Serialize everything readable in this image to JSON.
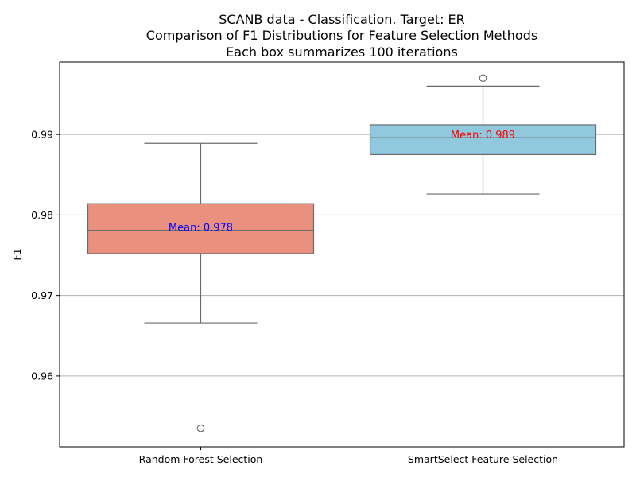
{
  "chart_data": {
    "type": "box",
    "title_lines": [
      "SCANB data - Classification. Target: ER",
      "Comparison of F1 Distributions for Feature Selection Methods",
      "Each box summarizes 100 iterations"
    ],
    "xlabel": "",
    "ylabel": "F1",
    "ylim": [
      0.9512,
      0.999
    ],
    "yticks": [
      0.96,
      0.97,
      0.98,
      0.99
    ],
    "ytick_labels": [
      "0.96",
      "0.97",
      "0.98",
      "0.99"
    ],
    "grid_y": true,
    "categories": [
      "Random Forest Selection",
      "SmartSelect Feature Selection"
    ],
    "boxes": [
      {
        "label": "Random Forest Selection",
        "whisker_low": 0.9666,
        "q1": 0.9752,
        "median": 0.9781,
        "q3": 0.9814,
        "whisker_high": 0.9889,
        "outliers": [
          0.9535
        ],
        "mean_label": "Mean: 0.978",
        "color": "#e9907f",
        "mean_label_color": "#0000ff"
      },
      {
        "label": "SmartSelect Feature Selection",
        "whisker_low": 0.9826,
        "q1": 0.9875,
        "median": 0.9896,
        "q3": 0.9912,
        "whisker_high": 0.996,
        "outliers": [
          0.997
        ],
        "mean_label": "Mean: 0.989",
        "color": "#90c8de",
        "mean_label_color": "#ff0000"
      }
    ],
    "line_color": "#6b6b6b",
    "grid_color": "#b0b0b0"
  }
}
